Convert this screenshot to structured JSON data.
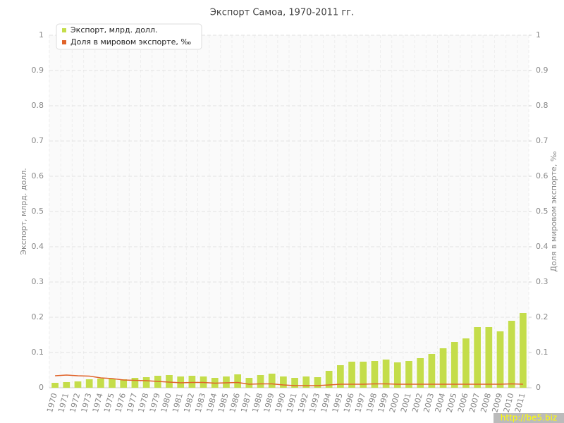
{
  "chart_data": {
    "type": "bar-line",
    "title": "Экспорт Самоа, 1970-2011 гг.",
    "y_label": "Экспорт, млрд. долл.",
    "y2_label": "Доля в мировом экспорте, ‰",
    "categories": [
      "1970",
      "1971",
      "1972",
      "1973",
      "1974",
      "1975",
      "1976",
      "1977",
      "1978",
      "1979",
      "1980",
      "1981",
      "1982",
      "1983",
      "1984",
      "1985",
      "1986",
      "1987",
      "1988",
      "1989",
      "1990",
      "1991",
      "1992",
      "1993",
      "1994",
      "1995",
      "1996",
      "1997",
      "1998",
      "1999",
      "2000",
      "2001",
      "2002",
      "2003",
      "2004",
      "2005",
      "2006",
      "2007",
      "2008",
      "2009",
      "2010",
      "2011"
    ],
    "series": [
      {
        "name": "Экспорт, млрд. долл.",
        "color": "#c4dd4a",
        "kind": "bar",
        "values": [
          0.014,
          0.016,
          0.018,
          0.024,
          0.026,
          0.026,
          0.024,
          0.028,
          0.03,
          0.034,
          0.036,
          0.032,
          0.034,
          0.032,
          0.028,
          0.032,
          0.038,
          0.028,
          0.036,
          0.04,
          0.032,
          0.028,
          0.032,
          0.03,
          0.048,
          0.064,
          0.074,
          0.074,
          0.076,
          0.08,
          0.072,
          0.076,
          0.084,
          0.096,
          0.112,
          0.13,
          0.14,
          0.172,
          0.172,
          0.16,
          0.19,
          0.212
        ]
      },
      {
        "name": "Доля в мировом экспорте, ‰",
        "color": "#e0632a",
        "kind": "line",
        "axis": "y2",
        "values": [
          0.034,
          0.036,
          0.034,
          0.033,
          0.028,
          0.026,
          0.022,
          0.021,
          0.02,
          0.018,
          0.016,
          0.014,
          0.015,
          0.015,
          0.013,
          0.014,
          0.015,
          0.01,
          0.011,
          0.011,
          0.008,
          0.006,
          0.006,
          0.006,
          0.008,
          0.01,
          0.01,
          0.01,
          0.011,
          0.011,
          0.01,
          0.01,
          0.01,
          0.01,
          0.01,
          0.01,
          0.01,
          0.01,
          0.01,
          0.01,
          0.011,
          0.01
        ]
      }
    ],
    "ylim": [
      0,
      1
    ],
    "yticks": [
      0,
      0.1,
      0.2,
      0.3,
      0.4,
      0.5,
      0.6,
      0.7,
      0.8,
      0.9,
      1
    ],
    "y2lim": [
      0,
      1
    ],
    "y2ticks": [
      0,
      0.1,
      0.2,
      0.3,
      0.4,
      0.5,
      0.6,
      0.7,
      0.8,
      0.9,
      1
    ],
    "grid": true,
    "legend": "top-left"
  },
  "watermark": "http://be5.biz"
}
